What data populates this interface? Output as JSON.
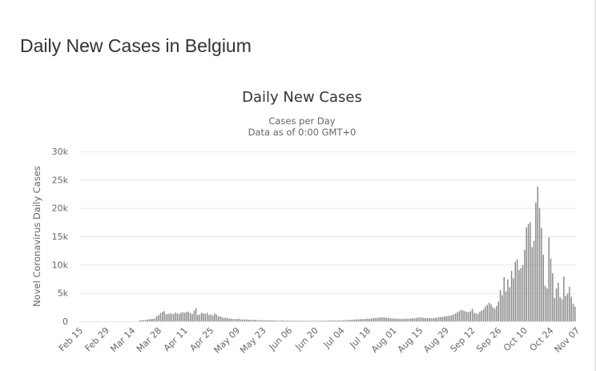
{
  "page": {
    "title": "Daily New Cases in Belgium"
  },
  "chart_data": {
    "type": "bar",
    "title": "Daily New Cases",
    "subtitle": [
      "Cases per Day",
      "Data as of 0:00 GMT+0"
    ],
    "ylabel": "Novel Coronavirus Daily Cases",
    "xlabel": "",
    "ylim": [
      0,
      30000
    ],
    "yticks": [
      {
        "value": 0,
        "label": "0"
      },
      {
        "value": 5000,
        "label": "5k"
      },
      {
        "value": 10000,
        "label": "10k"
      },
      {
        "value": 15000,
        "label": "15k"
      },
      {
        "value": 20000,
        "label": "20k"
      },
      {
        "value": 25000,
        "label": "25k"
      },
      {
        "value": 30000,
        "label": "30k"
      }
    ],
    "grid": true,
    "bar_color": "#888888",
    "start_date": "2020-02-15",
    "xticks": [
      {
        "index": 0,
        "label": "Feb 15"
      },
      {
        "index": 14,
        "label": "Feb 29"
      },
      {
        "index": 28,
        "label": "Mar 14"
      },
      {
        "index": 42,
        "label": "Mar 28"
      },
      {
        "index": 56,
        "label": "Apr 11"
      },
      {
        "index": 70,
        "label": "Apr 25"
      },
      {
        "index": 84,
        "label": "May 09"
      },
      {
        "index": 98,
        "label": "May 23"
      },
      {
        "index": 112,
        "label": "Jun 06"
      },
      {
        "index": 126,
        "label": "Jun 20"
      },
      {
        "index": 140,
        "label": "Jul 04"
      },
      {
        "index": 154,
        "label": "Jul 18"
      },
      {
        "index": 168,
        "label": "Aug 01"
      },
      {
        "index": 182,
        "label": "Aug 15"
      },
      {
        "index": 196,
        "label": "Aug 29"
      },
      {
        "index": 210,
        "label": "Sep 12"
      },
      {
        "index": 224,
        "label": "Sep 26"
      },
      {
        "index": 238,
        "label": "Oct 10"
      },
      {
        "index": 252,
        "label": "Oct 24"
      },
      {
        "index": 266,
        "label": "Nov 07"
      }
    ],
    "values": [
      0,
      0,
      0,
      0,
      0,
      0,
      0,
      0,
      0,
      0,
      0,
      0,
      0,
      0,
      0,
      0,
      0,
      0,
      0,
      0,
      0,
      0,
      0,
      0,
      0,
      0,
      0,
      0,
      0,
      0,
      0,
      0,
      170,
      190,
      200,
      230,
      300,
      350,
      400,
      430,
      500,
      900,
      1100,
      1450,
      1650,
      1800,
      1250,
      1300,
      1400,
      1350,
      1250,
      1550,
      1400,
      1300,
      1500,
      1600,
      1500,
      1700,
      1650,
      1450,
      1250,
      1900,
      2300,
      1100,
      1200,
      1500,
      1400,
      1300,
      1500,
      1100,
      1200,
      1000,
      1400,
      1200,
      900,
      850,
      700,
      600,
      650,
      550,
      500,
      450,
      400,
      380,
      400,
      450,
      350,
      300,
      350,
      330,
      280,
      300,
      260,
      240,
      250,
      220,
      200,
      210,
      190,
      180,
      170,
      160,
      160,
      150,
      140,
      130,
      120,
      110,
      130,
      120,
      110,
      100,
      110,
      100,
      90,
      90,
      100,
      95,
      85,
      80,
      85,
      90,
      80,
      75,
      70,
      80,
      85,
      80,
      90,
      100,
      110,
      90,
      100,
      120,
      130,
      140,
      150,
      120,
      130,
      140,
      160,
      180,
      200,
      220,
      230,
      260,
      300,
      330,
      360,
      350,
      380,
      400,
      420,
      440,
      460,
      480,
      520,
      560,
      600,
      620,
      650,
      700,
      680,
      660,
      640,
      600,
      560,
      520,
      500,
      480,
      460,
      450,
      440,
      430,
      450,
      470,
      480,
      500,
      520,
      550,
      600,
      650,
      700,
      650,
      600,
      580,
      560,
      550,
      540,
      560,
      600,
      650,
      700,
      750,
      800,
      850,
      900,
      950,
      1000,
      1100,
      1200,
      1400,
      1600,
      1800,
      2000,
      1900,
      1800,
      1700,
      1600,
      1800,
      2200,
      1500,
      1400,
      1300,
      1700,
      1900,
      2100,
      2600,
      2900,
      3300,
      3000,
      2500,
      2200,
      2700,
      3500,
      5500,
      4600,
      7800,
      5300,
      7400,
      6000,
      8900,
      7600,
      10500,
      10900,
      9100,
      9400,
      9900,
      12600,
      16600,
      17200,
      17500,
      13100,
      14200,
      21000,
      23800,
      20000,
      16500,
      11800,
      6300,
      5800,
      14800,
      11100,
      8500,
      4100,
      5800,
      6800,
      4300,
      3900,
      7900,
      4500,
      4900,
      6100,
      4300,
      3100,
      2600
    ]
  }
}
